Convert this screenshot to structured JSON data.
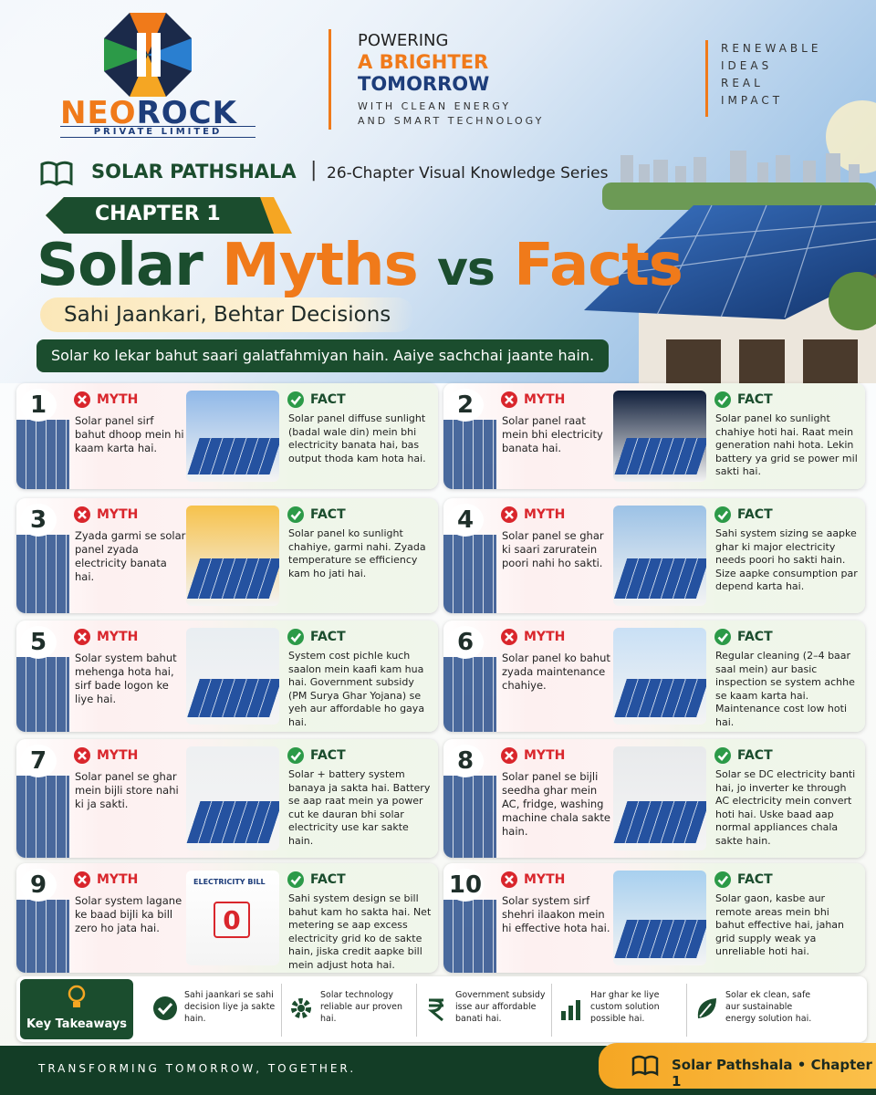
{
  "header": {
    "logo_part1": "NEO",
    "logo_part2": "ROCK",
    "logo_sub": "PRIVATE LIMITED",
    "tagline": [
      "POWERING",
      "A BRIGHTER",
      "TOMORROW"
    ],
    "tagline_sub": [
      "WITH CLEAN ENERGY",
      "AND SMART TECHNOLOGY"
    ],
    "side": [
      "RENEWABLE",
      "IDEAS",
      "REAL",
      "IMPACT"
    ]
  },
  "series": {
    "name": "SOLAR PATHSHALA",
    "separator": "|",
    "description": "26-Chapter Visual Knowledge Series"
  },
  "chapter": "CHAPTER 1",
  "title": [
    "Solar",
    "Myths",
    "vs",
    "Facts"
  ],
  "subtitle": "Sahi Jaankari, Behtar Decisions",
  "intro": "Solar ko lekar bahut saari galatfahmiyan hain. Aaiye sachchai jaante hain.",
  "myth_label": "MYTH",
  "fact_label": "FACT",
  "cards": [
    {
      "number": 1,
      "myth": "Solar panel sirf bahut dhoop mein hi kaam karta hai.",
      "fact": "Solar panel diffuse sunlight (badal wale din) mein bhi electricity banata hai, bas output thoda kam hota hai."
    },
    {
      "number": 2,
      "myth": "Solar panel raat mein bhi electricity banata hai.",
      "fact": "Solar panel ko sunlight chahiye hoti hai. Raat mein generation nahi hota. Lekin battery ya grid se power mil sakti hai."
    },
    {
      "number": 3,
      "myth": "Zyada garmi se solar panel zyada electricity banata hai.",
      "fact": "Solar panel ko sunlight chahiye, garmi nahi. Zyada temperature se efficiency kam ho jati hai."
    },
    {
      "number": 4,
      "myth": "Solar panel se ghar ki saari zaruratein poori nahi ho sakti.",
      "fact": "Sahi system sizing se aapke ghar ki major electricity needs poori ho sakti hain. Size aapke consumption par depend karta hai."
    },
    {
      "number": 5,
      "myth": "Solar system bahut mehenga hota hai, sirf bade logon ke liye hai.",
      "fact": "System cost pichle kuch saalon mein kaafi kam hua hai. Government subsidy (PM Surya Ghar Yojana) se yeh aur affordable ho gaya hai."
    },
    {
      "number": 6,
      "myth": "Solar panel ko bahut zyada maintenance chahiye.",
      "fact": "Regular cleaning (2–4 baar saal mein) aur basic inspection se system achhe se kaam karta hai. Maintenance cost low hoti hai."
    },
    {
      "number": 7,
      "myth": "Solar panel se ghar mein bijli store nahi ki ja sakti.",
      "fact": "Solar + battery system banaya ja sakta hai. Battery se aap raat mein ya power cut ke dauran bhi solar electricity use kar sakte hain."
    },
    {
      "number": 8,
      "myth": "Solar panel se bijli seedha ghar mein AC, fridge, washing machine chala sakte hain.",
      "fact": "Solar se DC electricity banti hai, jo inverter ke through AC electricity mein convert hoti hai. Uske baad aap normal appliances chala sakte hain."
    },
    {
      "number": 9,
      "myth": "Solar system lagane ke baad bijli ka bill zero ho jata hai.",
      "fact": "Sahi system design se bill bahut kam ho sakta hai. Net metering se aap excess electricity grid ko de sakte hain, jiska credit aapke bill mein adjust hota hai.",
      "image_title": "ELECTRICITY BILL",
      "image_value": "0"
    },
    {
      "number": 10,
      "myth": "Solar system sirf shehri ilaakon mein hi effective hota hai.",
      "fact": "Solar gaon, kasbe aur remote areas mein bhi bahut effective hai, jahan grid supply weak ya unreliable hoti hai."
    }
  ],
  "takeaways": {
    "title": "Key Takeaways",
    "items": [
      "Sahi jaankari se sahi decision liye ja sakte hain.",
      "Solar technology reliable aur proven hai.",
      "Government subsidy isse aur affordable banati hai.",
      "Har ghar ke liye custom solution possible hai.",
      "Solar ek clean, safe aur sustainable energy solution hai."
    ]
  },
  "footer": {
    "slogan": "TRANSFORMING TOMORROW, TOGETHER.",
    "badge": "Solar Pathshala • Chapter 1"
  }
}
